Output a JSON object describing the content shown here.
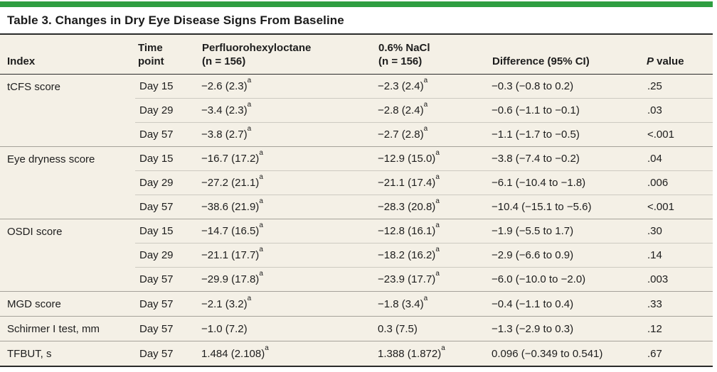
{
  "colors": {
    "accent-green": "#2f9e41",
    "paper-cream": "#f4f0e6",
    "rule-dark": "#2a2a2a",
    "rule-group": "#a5a29a",
    "rule-row": "#cdcac1",
    "text-main": "#1d1d1d"
  },
  "table": {
    "title": "Table 3. Changes in Dry Eye Disease Signs From Baseline",
    "header": {
      "index": "Index",
      "time_line1": "Time",
      "time_line2": "point",
      "pfho_line1": "Perfluorohexyloctane",
      "pfho_line2": "(n = 156)",
      "nacl_line1": "0.6% NaCl",
      "nacl_line2": "(n = 156)",
      "diff": "Difference (95% CI)",
      "p_italic": "P",
      "p_rest": " value"
    },
    "groups": [
      {
        "name": "tCFS score",
        "rows": [
          {
            "time": "Day 15",
            "pfho": "−2.6 (2.3)",
            "pfho_sup": "a",
            "nacl": "−2.3 (2.4)",
            "nacl_sup": "a",
            "diff": "−0.3 (−0.8 to 0.2)",
            "p": ".25"
          },
          {
            "time": "Day 29",
            "pfho": "−3.4 (2.3)",
            "pfho_sup": "a",
            "nacl": "−2.8 (2.4)",
            "nacl_sup": "a",
            "diff": "−0.6 (−1.1 to −0.1)",
            "p": ".03"
          },
          {
            "time": "Day 57",
            "pfho": "−3.8 (2.7)",
            "pfho_sup": "a",
            "nacl": "−2.7 (2.8)",
            "nacl_sup": "a",
            "diff": "−1.1 (−1.7 to −0.5)",
            "p": "<.001"
          }
        ]
      },
      {
        "name": "Eye dryness score",
        "rows": [
          {
            "time": "Day 15",
            "pfho": "−16.7 (17.2)",
            "pfho_sup": "a",
            "nacl": "−12.9 (15.0)",
            "nacl_sup": "a",
            "diff": "−3.8 (−7.4 to −0.2)",
            "p": ".04"
          },
          {
            "time": "Day 29",
            "pfho": "−27.2 (21.1)",
            "pfho_sup": "a",
            "nacl": "−21.1 (17.4)",
            "nacl_sup": "a",
            "diff": "−6.1 (−10.4 to −1.8)",
            "p": ".006"
          },
          {
            "time": "Day 57",
            "pfho": "−38.6 (21.9)",
            "pfho_sup": "a",
            "nacl": "−28.3 (20.8)",
            "nacl_sup": "a",
            "diff": "−10.4 (−15.1 to −5.6)",
            "p": "<.001"
          }
        ]
      },
      {
        "name": "OSDI score",
        "rows": [
          {
            "time": "Day 15",
            "pfho": "−14.7 (16.5)",
            "pfho_sup": "a",
            "nacl": "−12.8 (16.1)",
            "nacl_sup": "a",
            "diff": "−1.9 (−5.5 to 1.7)",
            "p": ".30"
          },
          {
            "time": "Day 29",
            "pfho": "−21.1 (17.7)",
            "pfho_sup": "a",
            "nacl": "−18.2 (16.2)",
            "nacl_sup": "a",
            "diff": "−2.9 (−6.6 to 0.9)",
            "p": ".14"
          },
          {
            "time": "Day 57",
            "pfho": "−29.9 (17.8)",
            "pfho_sup": "a",
            "nacl": "−23.9 (17.7)",
            "nacl_sup": "a",
            "diff": "−6.0 (−10.0 to −2.0)",
            "p": ".003"
          }
        ]
      },
      {
        "name": "MGD score",
        "rows": [
          {
            "time": "Day 57",
            "pfho": "−2.1 (3.2)",
            "pfho_sup": "a",
            "nacl": "−1.8 (3.4)",
            "nacl_sup": "a",
            "diff": "−0.4 (−1.1 to 0.4)",
            "p": ".33"
          }
        ]
      },
      {
        "name": "Schirmer I test, mm",
        "rows": [
          {
            "time": "Day 57",
            "pfho": "−1.0 (7.2)",
            "pfho_sup": "",
            "nacl": "0.3 (7.5)",
            "nacl_sup": "",
            "diff": "−1.3 (−2.9 to 0.3)",
            "p": ".12"
          }
        ]
      },
      {
        "name": "TFBUT, s",
        "rows": [
          {
            "time": "Day 57",
            "pfho": "1.484 (2.108)",
            "pfho_sup": "a",
            "nacl": "1.388 (1.872)",
            "nacl_sup": "a",
            "diff": "0.096 (−0.349 to 0.541)",
            "p": ".67"
          }
        ]
      }
    ]
  }
}
